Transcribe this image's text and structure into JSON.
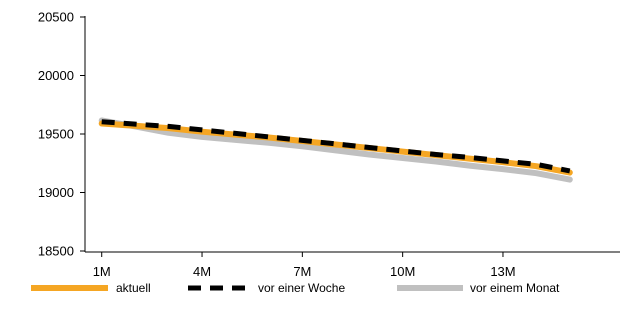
{
  "chart_data": {
    "type": "line",
    "title": "",
    "xlabel": "",
    "ylabel": "",
    "ylim": [
      18500,
      20500
    ],
    "yticks": [
      18500,
      19000,
      19500,
      20000,
      20500
    ],
    "x": [
      1,
      2,
      3,
      4,
      5,
      6,
      7,
      8,
      9,
      10,
      11,
      12,
      13,
      14,
      15
    ],
    "xtick_labels": [
      "1M",
      "4M",
      "7M",
      "10M",
      "13M"
    ],
    "xtick_positions": [
      1,
      4,
      7,
      10,
      13
    ],
    "grid": false,
    "legend_position": "bottom",
    "series": [
      {
        "name": "aktuell",
        "color": "#f5a623",
        "style": "solid",
        "values": [
          19590,
          19570,
          19550,
          19520,
          19495,
          19470,
          19440,
          19410,
          19380,
          19350,
          19320,
          19290,
          19260,
          19225,
          19170
        ]
      },
      {
        "name": "vor einer Woche",
        "color": "#000000",
        "style": "dashed",
        "values": [
          19605,
          19585,
          19565,
          19535,
          19505,
          19475,
          19445,
          19415,
          19385,
          19355,
          19325,
          19300,
          19270,
          19240,
          19185
        ]
      },
      {
        "name": "vor einem Monat",
        "color": "#c0c0c0",
        "style": "solid",
        "values": [
          19615,
          19565,
          19510,
          19475,
          19450,
          19425,
          19395,
          19360,
          19325,
          19295,
          19265,
          19230,
          19200,
          19165,
          19110
        ]
      }
    ]
  }
}
